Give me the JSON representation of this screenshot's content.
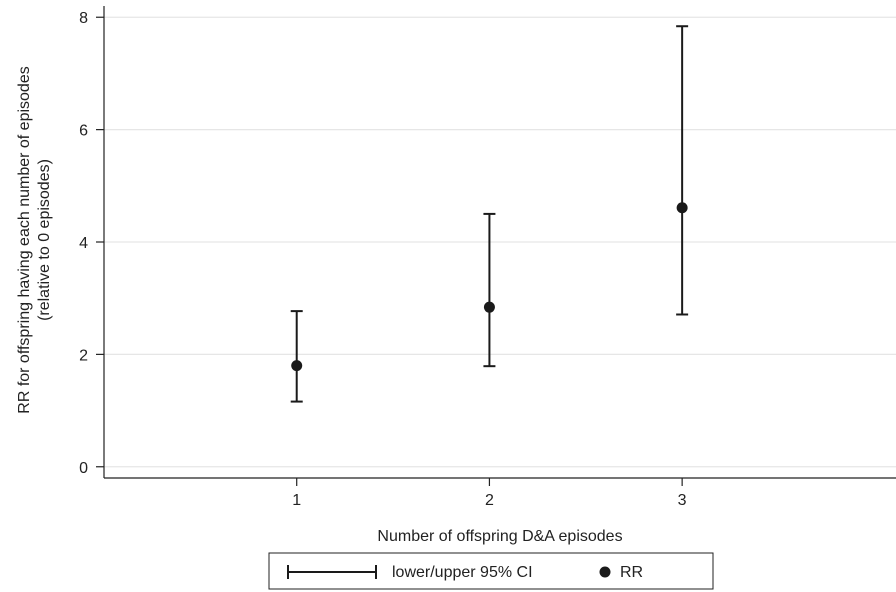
{
  "chart_data": {
    "type": "scatter",
    "title": "",
    "xlabel": "Number of offspring D&A episodes",
    "ylabel_line1": "RR for offspring having each number of episodes",
    "ylabel_line2": "(relative to 0 episodes)",
    "x_ticks": [
      "1",
      "2",
      "3"
    ],
    "y_ticks": [
      "0",
      "2",
      "4",
      "6",
      "8"
    ],
    "xlim": [
      0,
      4
    ],
    "ylim": [
      -0.2,
      8.2
    ],
    "grid": true,
    "legend_position": "bottom-center",
    "series": [
      {
        "name": "RR",
        "x": [
          1,
          2,
          3
        ],
        "y": [
          1.8,
          2.84,
          4.61
        ],
        "color": "#1a1a1a",
        "marker": "circle"
      },
      {
        "name": "lower/upper 95% CI",
        "x": [
          1,
          2,
          3
        ],
        "lower": [
          1.16,
          1.79,
          2.71
        ],
        "upper": [
          2.77,
          4.5,
          7.84
        ],
        "color": "#1a1a1a",
        "marker": "errorbar"
      }
    ]
  }
}
